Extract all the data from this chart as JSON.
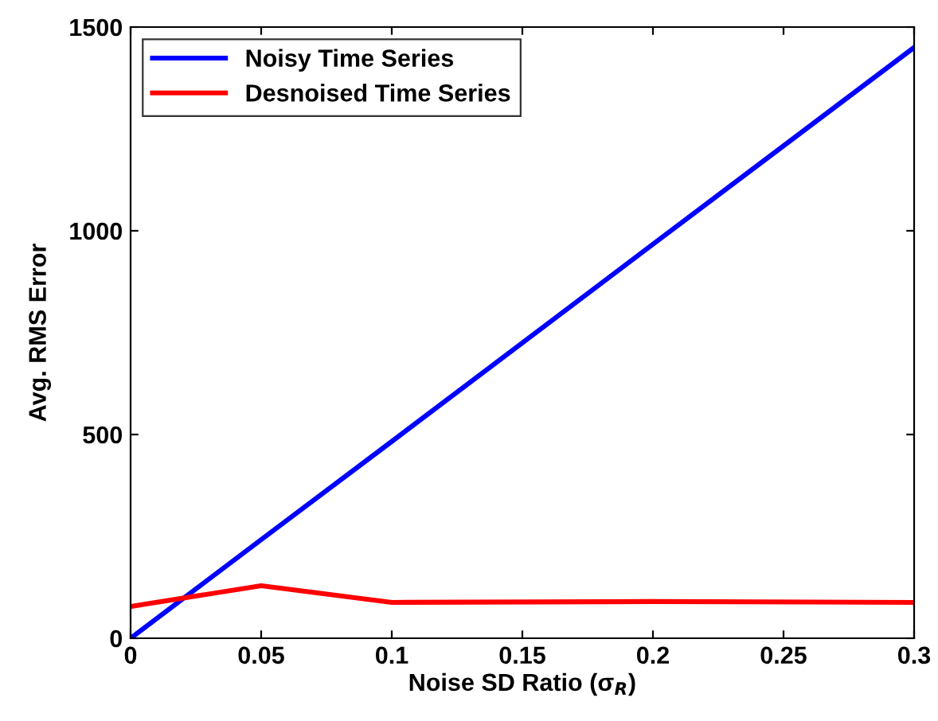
{
  "chart_data": {
    "type": "line",
    "xlabel": "Noise SD Ratio (σ$_{R}$)",
    "ylabel": "Avg. RMS Error",
    "x": [
      0,
      0.05,
      0.1,
      0.2,
      0.3
    ],
    "series": [
      {
        "name": "Noisy Time Series",
        "color": "#0000ff",
        "values": [
          0,
          242,
          483,
          967,
          1450
        ]
      },
      {
        "name": "Desnoised Time Series",
        "color": "#ff0000",
        "values": [
          78,
          129,
          88,
          90,
          88
        ]
      }
    ],
    "xlim": [
      0,
      0.3
    ],
    "xticks": [
      0,
      0.05,
      0.1,
      0.15,
      0.2,
      0.25,
      0.3
    ],
    "ylim": [
      0,
      1500
    ],
    "yticks": [
      0,
      500,
      1000,
      1500
    ],
    "grid": false,
    "legend": "top left",
    "marker": "none",
    "line_style": "solid"
  }
}
